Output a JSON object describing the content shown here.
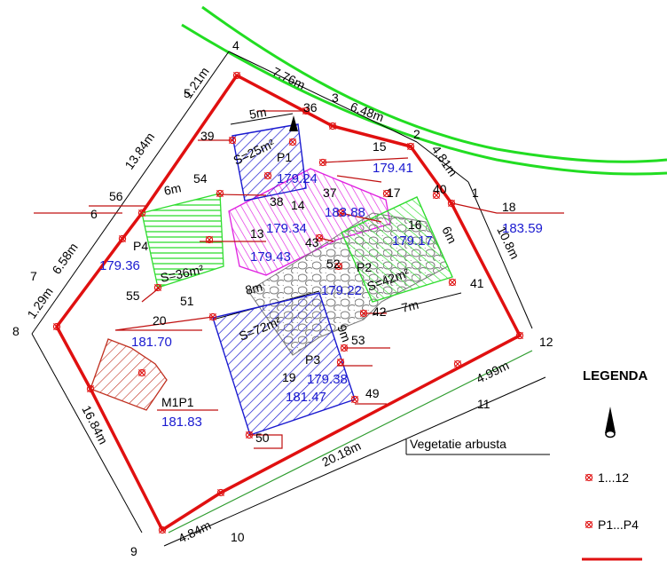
{
  "legend": {
    "title": "LEGENDA",
    "items": [
      {
        "icon": "north-arrow-icon",
        "label": ""
      },
      {
        "icon": "cross-marker-icon",
        "label": "1...12"
      },
      {
        "icon": "cross-marker-icon",
        "label": "P1...P4"
      },
      {
        "icon": "red-line-icon",
        "label": ""
      }
    ]
  },
  "colors": {
    "boundary": "#e01010",
    "road": "#22dd22",
    "hatch_blue": "#1a1ad0",
    "hatch_magenta": "#e020e0",
    "hatch_green": "#30dd30",
    "hatch_brown": "#c03020",
    "vegetation_line": "#2a9a2a",
    "elevation_text": "#1a1ad0"
  },
  "point_labels": [
    "1",
    "2",
    "3",
    "4",
    "5",
    "6",
    "7",
    "8",
    "9",
    "10",
    "11",
    "12",
    "13",
    "14",
    "15",
    "16",
    "17",
    "18",
    "19",
    "20",
    "36",
    "37",
    "38",
    "39",
    "40",
    "41",
    "42",
    "43",
    "49",
    "50",
    "51",
    "52",
    "53",
    "54",
    "55",
    "56"
  ],
  "measurements": {
    "d_4_3": "7.76m",
    "d_3_2": "6.48m",
    "d_2_1": "4.81m",
    "d_1_12": "10.8m",
    "d_12_11": "4.99m",
    "d_11_10": "20.18m",
    "d_10_9": "4.84m",
    "d_9_8": "16.84m",
    "d_8_7": "1.29m",
    "d_7_6": "6.58m",
    "d_6_5": "13.84m",
    "d_5_4": "1.21m",
    "w_p1": "5m",
    "w_p4": "6m",
    "w_p3": "8m",
    "h_p3": "9m",
    "w_p2": "7m",
    "h_p2": "6m"
  },
  "areas": {
    "p1": "S=25m²",
    "p4": "S=36m²",
    "p3": "S=72m²",
    "p2": "S=42m²"
  },
  "plots": [
    "P1",
    "P2",
    "P3",
    "P4",
    "M1P1"
  ],
  "elevations": {
    "p1": "179.24",
    "p2": "179.22",
    "p3": "179.38",
    "p4": "179.36",
    "m1p1": "181.83",
    "pt15": "179.41",
    "pt14": "179.34",
    "pt13": "179.43",
    "pt18": "183.59",
    "pt16": "179.17",
    "pt37": "183.88",
    "pt19": "181.47",
    "pt20": "181.70"
  },
  "vegetation_label": "Vegetatie arbusta"
}
